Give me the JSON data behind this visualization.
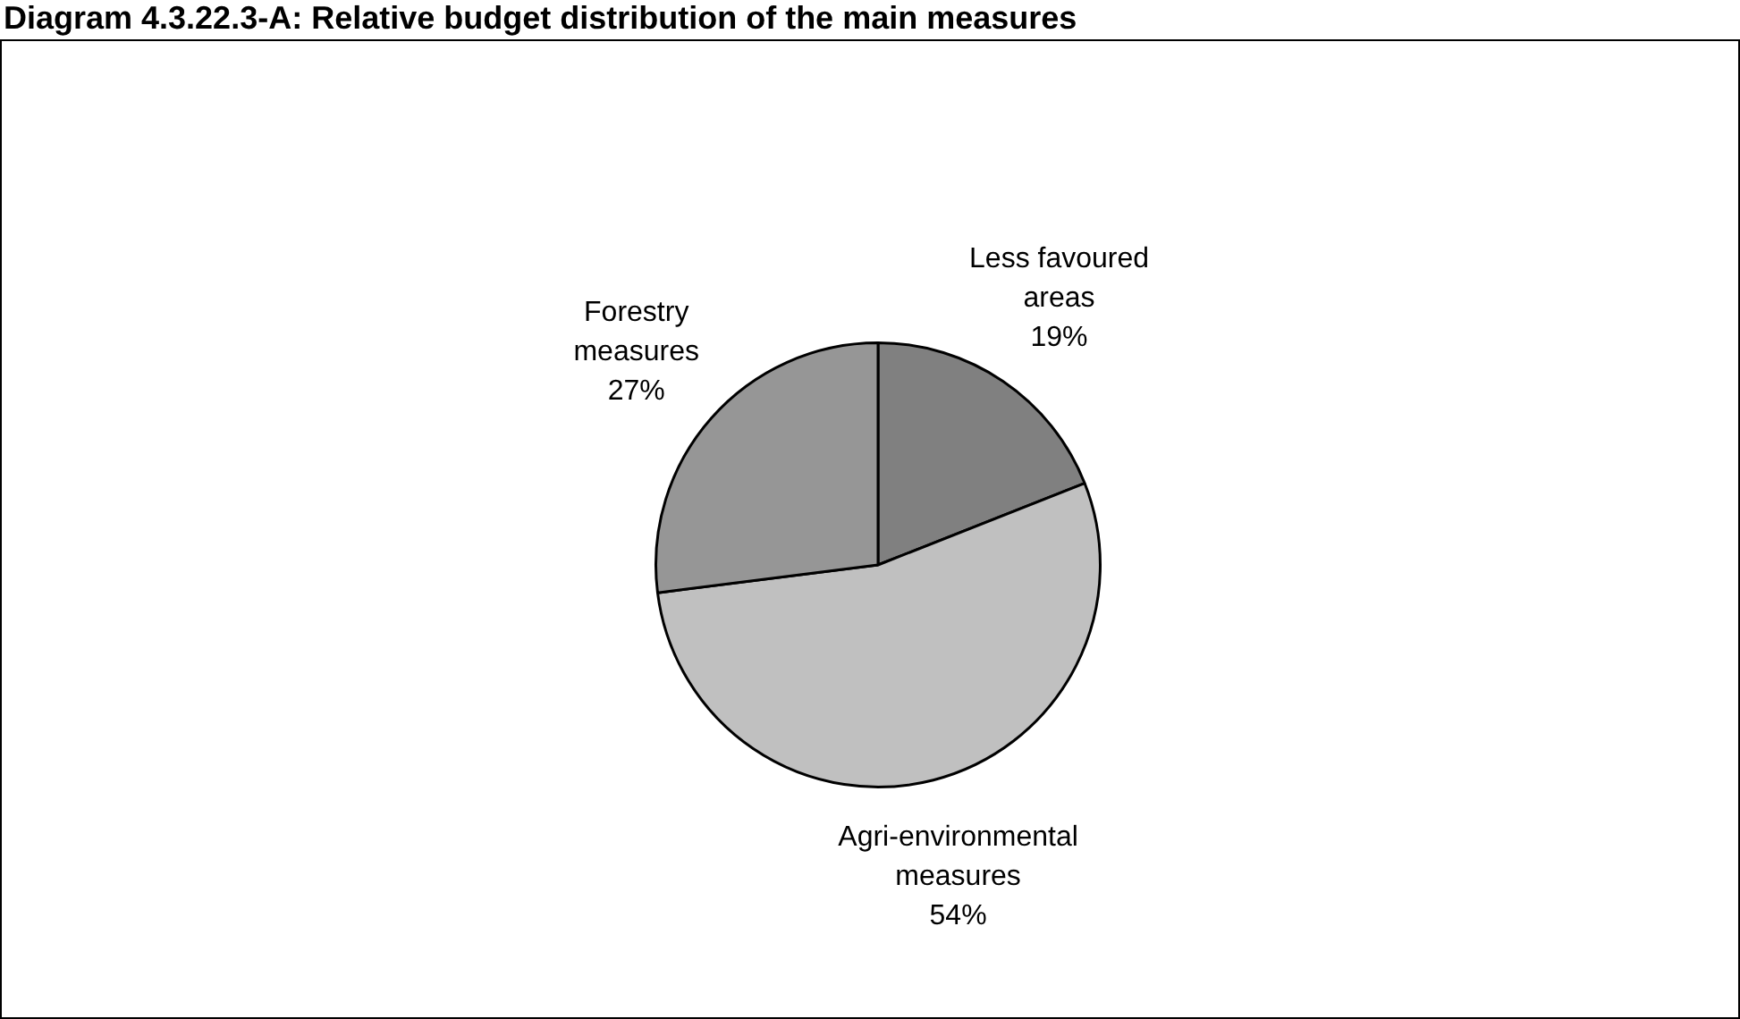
{
  "chart_data": {
    "type": "pie",
    "title": "Diagram 4.3.22.3-A: Relative budget distribution of the main measures",
    "categories": [
      "Less favoured areas",
      "Agri-environmental measures",
      "Forestry measures"
    ],
    "values": [
      19,
      54,
      27
    ],
    "colors": [
      "#808080",
      "#c0c0c0",
      "#969696"
    ],
    "value_labels": [
      "19%",
      "54%",
      "27%"
    ],
    "legend": false
  }
}
